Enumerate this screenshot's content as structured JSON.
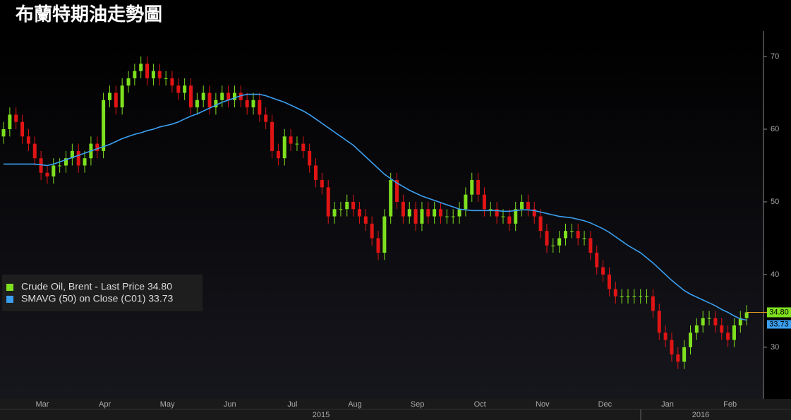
{
  "chart_data": {
    "type": "candlestick",
    "title": "布蘭特期油走勢圖",
    "x_labels": [
      "Mar",
      "Apr",
      "May",
      "Jun",
      "Jul",
      "Aug",
      "Sep",
      "Oct",
      "Nov",
      "Dec",
      "Jan",
      "Feb"
    ],
    "years": [
      "2015",
      "2016"
    ],
    "ylim": [
      22.9,
      73.5
    ],
    "yticks": [
      30,
      40,
      50,
      60,
      70
    ],
    "series": [
      {
        "name": "Crude Oil, Brent - Last Price 34.80",
        "color": "#7ee01e",
        "down_color": "#e01414",
        "last_label": {
          "value": 34.8,
          "label": "34.80"
        },
        "open": [
          59,
          60,
          62,
          61,
          59,
          58,
          56,
          54,
          53.5,
          55,
          55,
          56,
          57,
          55,
          56,
          58,
          57,
          64,
          65,
          63,
          66,
          67,
          68,
          69,
          67,
          68,
          67,
          67,
          66,
          65,
          66,
          63,
          64,
          65,
          63,
          64,
          65,
          64,
          65,
          64,
          63,
          64,
          62,
          61,
          57,
          56,
          59,
          58,
          58,
          57,
          55,
          53,
          52,
          48,
          49,
          49,
          50,
          49,
          48,
          47,
          45,
          43,
          48,
          53,
          50,
          48,
          49,
          47,
          49,
          48,
          49,
          48,
          48,
          48,
          49,
          51,
          53,
          51,
          49,
          49,
          48,
          48,
          47,
          49,
          50,
          49,
          48,
          46,
          44,
          44,
          45,
          46,
          46,
          45,
          45,
          43,
          41,
          40,
          38,
          37,
          37,
          37,
          37,
          37,
          37,
          35,
          32,
          31,
          29,
          28,
          30,
          32,
          33,
          34,
          34,
          33,
          32,
          31,
          33,
          34
        ],
        "high": [
          61,
          63,
          63,
          62,
          60,
          59,
          57,
          55,
          56,
          56,
          57,
          58,
          58,
          57,
          59,
          59,
          65,
          66,
          66,
          67,
          68,
          69,
          70,
          70,
          69,
          69,
          68,
          68,
          67,
          67,
          67,
          65,
          66,
          66,
          65,
          66,
          66,
          66,
          66,
          65,
          65,
          65,
          63,
          62,
          58,
          60,
          60,
          59,
          59,
          58,
          56,
          54,
          53,
          50,
          50,
          51,
          51,
          50,
          49,
          48,
          46,
          49,
          54,
          54,
          51,
          50,
          50,
          50,
          50,
          50,
          50,
          49,
          49,
          50,
          52,
          54,
          54,
          52,
          50,
          50,
          49,
          49,
          50,
          51,
          51,
          50,
          49,
          47,
          45,
          46,
          47,
          47,
          47,
          46,
          46,
          44,
          42,
          41,
          39,
          38,
          38,
          38,
          38,
          38,
          38,
          36,
          33,
          32,
          30,
          31,
          33,
          34,
          35,
          35,
          35,
          34,
          33,
          34,
          35,
          35.8
        ],
        "low": [
          58,
          59,
          60,
          58,
          57,
          55,
          53,
          52.5,
          52.5,
          54,
          54,
          55,
          54,
          54,
          55,
          56,
          56,
          63,
          62,
          62,
          65,
          66,
          67,
          66,
          66,
          66,
          66,
          65,
          64,
          64,
          62,
          62,
          63,
          62,
          62,
          63,
          63,
          63,
          63,
          62,
          62,
          61,
          60,
          56,
          55,
          55,
          57,
          57,
          56,
          54,
          52,
          51,
          47,
          47,
          48,
          48,
          48,
          47,
          46,
          44,
          42,
          42,
          47,
          49,
          47,
          47,
          46,
          46,
          47,
          47,
          47,
          47,
          47,
          47,
          48,
          50,
          50,
          48,
          48,
          47,
          47,
          46,
          46,
          48,
          48,
          47,
          45,
          43,
          43,
          43,
          44,
          45,
          44,
          44,
          42,
          40,
          39,
          37,
          36,
          36,
          36,
          36,
          36,
          36,
          34,
          31,
          30,
          28,
          27,
          27,
          29,
          31,
          32,
          33,
          32,
          31,
          30,
          30,
          32,
          33
        ],
        "close": [
          60,
          62,
          61,
          59,
          58,
          56,
          54,
          53.5,
          55,
          55,
          56,
          57,
          55,
          56,
          58,
          57,
          64,
          65,
          63,
          66,
          67,
          68,
          69,
          67,
          68,
          67,
          67,
          66,
          65,
          66,
          63,
          64,
          65,
          63,
          64,
          65,
          64,
          65,
          64,
          63,
          64,
          62,
          61,
          57,
          56,
          59,
          58,
          58,
          57,
          55,
          53,
          52,
          48,
          49,
          49,
          50,
          49,
          48,
          47,
          45,
          43,
          48,
          53,
          50,
          48,
          49,
          47,
          49,
          48,
          49,
          48,
          48,
          48,
          49,
          51,
          53,
          51,
          49,
          49,
          48,
          48,
          47,
          49,
          50,
          49,
          48,
          46,
          44,
          44,
          45,
          46,
          46,
          45,
          45,
          43,
          41,
          40,
          38,
          37,
          37,
          37,
          37,
          37,
          37,
          35,
          32,
          31,
          29,
          28,
          30,
          32,
          33,
          34,
          34,
          33,
          32,
          31,
          33,
          34,
          34.8
        ]
      },
      {
        "name": "SMAVG (50) on Close (C01) 33.73",
        "color": "#3b9ff0",
        "last_label": {
          "value": 33.73,
          "label": "33.73"
        },
        "values": [
          55.2,
          55.2,
          55.2,
          55.2,
          55.2,
          55.2,
          55.1,
          55.0,
          55.2,
          55.5,
          55.8,
          56.1,
          56.4,
          56.7,
          57,
          57.3,
          57.6,
          57.9,
          58.3,
          58.7,
          59.0,
          59.3,
          59.5,
          59.8,
          60.0,
          60.3,
          60.5,
          60.7,
          61.0,
          61.4,
          61.8,
          62.1,
          62.5,
          62.9,
          63.3,
          63.7,
          64.0,
          64.3,
          64.6,
          64.8,
          64.8,
          64.8,
          64.6,
          64.3,
          64.0,
          63.7,
          63.3,
          62.9,
          62.5,
          62.0,
          61.4,
          60.8,
          60.2,
          59.6,
          59.0,
          58.4,
          57.8,
          57.0,
          56.2,
          55.4,
          54.6,
          53.8,
          53.2,
          52.6,
          52.1,
          51.6,
          51.2,
          50.8,
          50.5,
          50.2,
          49.9,
          49.6,
          49.3,
          49.0,
          48.9,
          48.8,
          48.8,
          48.8,
          48.8,
          48.8,
          48.7,
          48.7,
          48.8,
          48.9,
          48.9,
          48.8,
          48.6,
          48.4,
          48.2,
          48.0,
          47.9,
          47.8,
          47.6,
          47.4,
          47.1,
          46.7,
          46.3,
          45.8,
          45.2,
          44.6,
          44.0,
          43.5,
          43.0,
          42.3,
          41.6,
          40.8,
          40.0,
          39.2,
          38.5,
          37.8,
          37.3,
          36.9,
          36.5,
          36.1,
          35.7,
          35.2,
          34.8,
          34.3,
          33.9,
          33.73
        ]
      }
    ]
  }
}
